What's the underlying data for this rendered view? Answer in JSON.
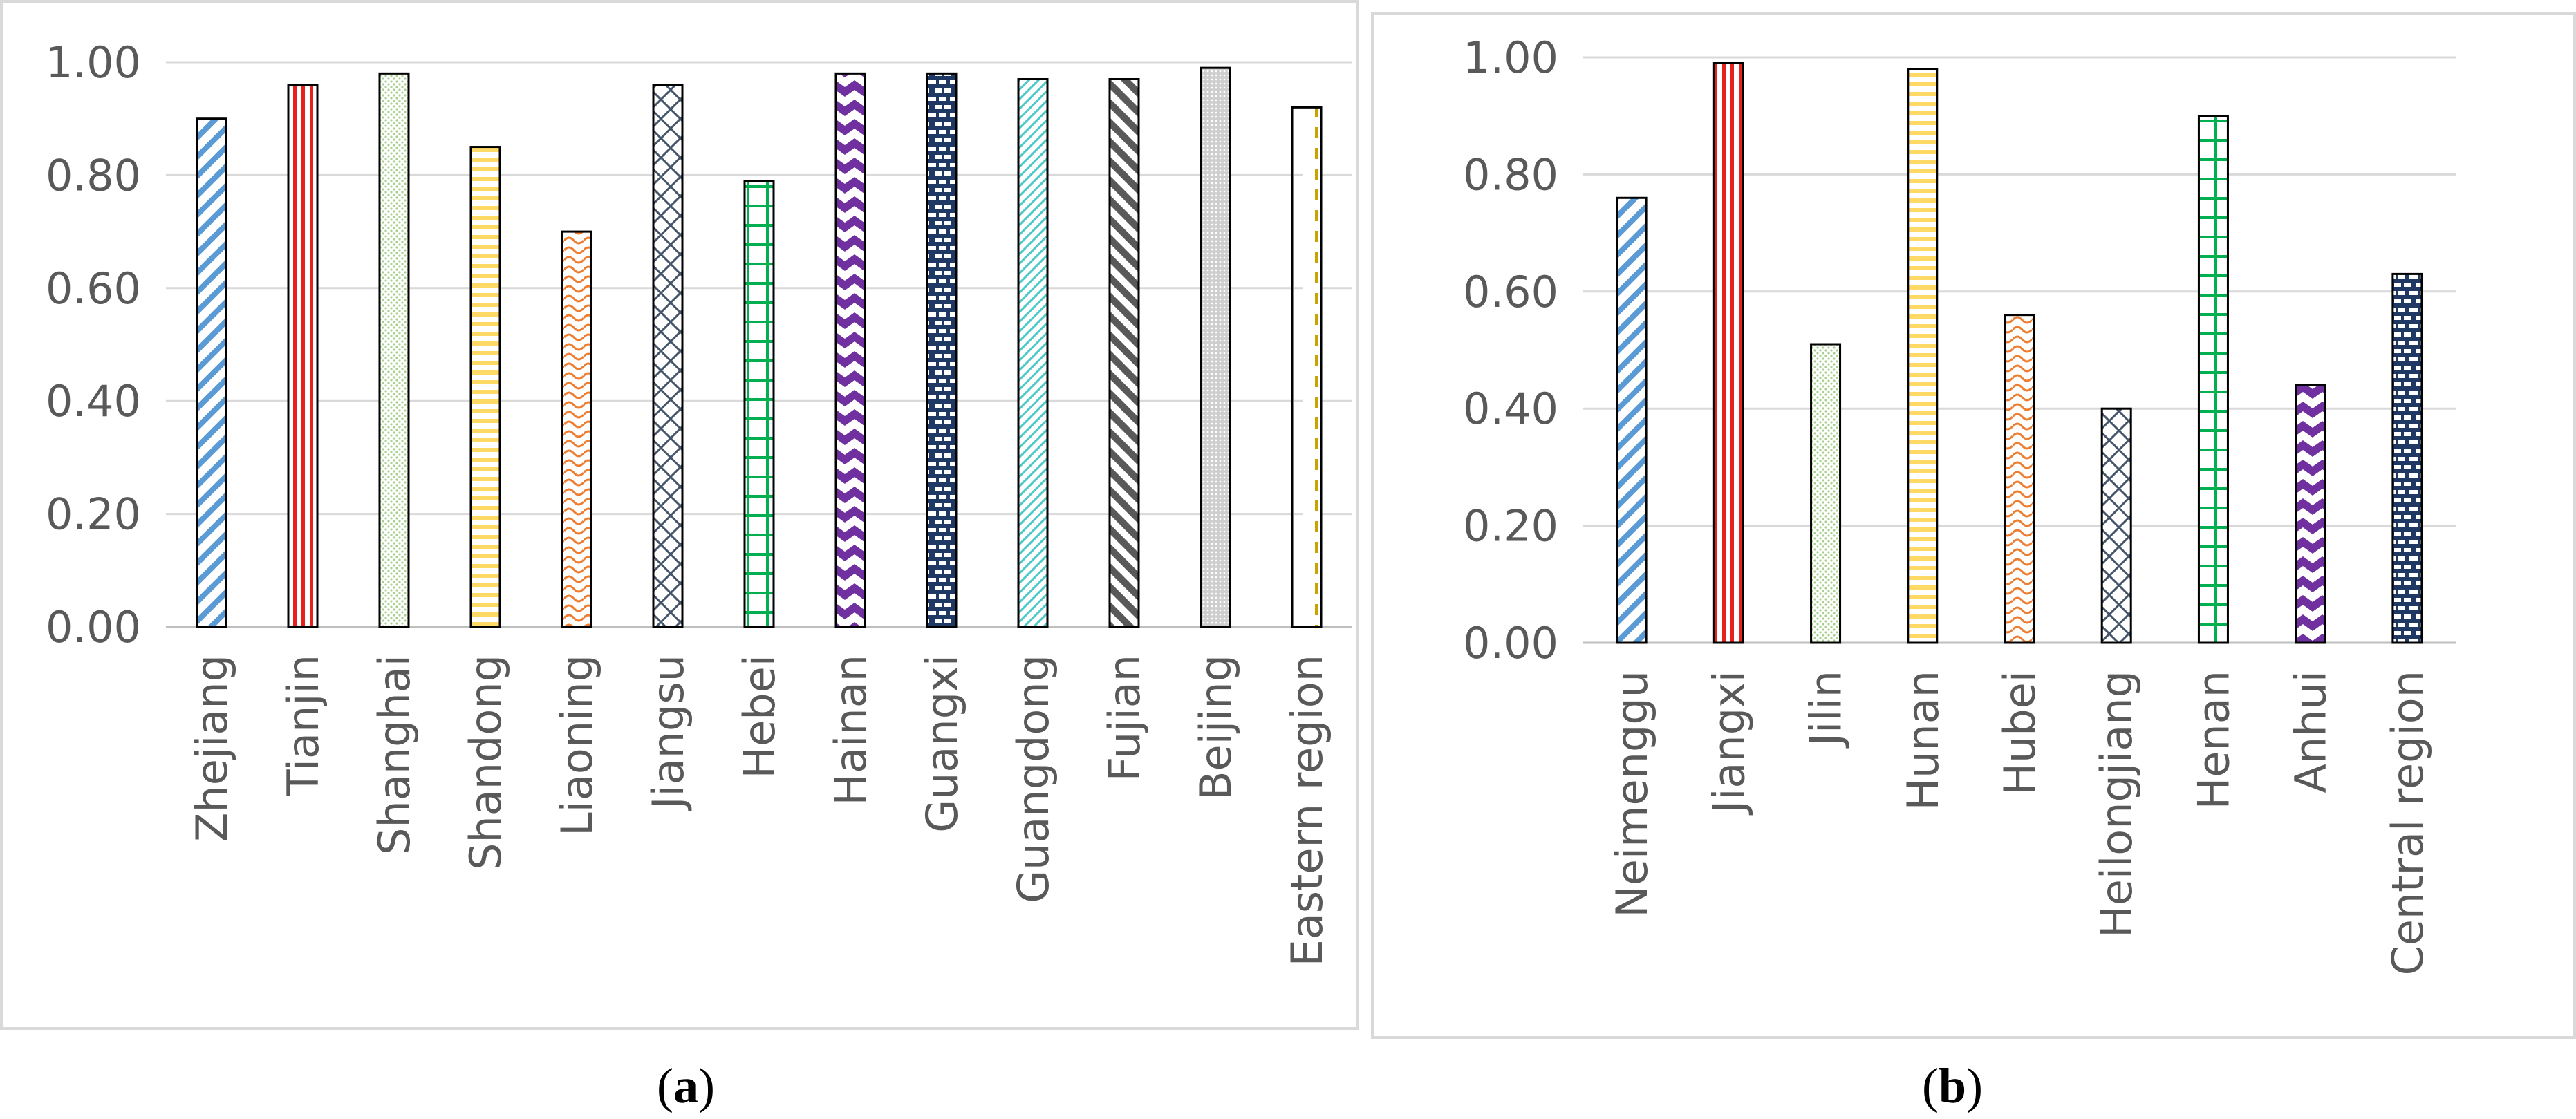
{
  "chart_data": [
    {
      "type": "bar",
      "panel_label": "a",
      "title": "",
      "xlabel": "",
      "ylabel": "",
      "ylim": [
        0,
        1.0
      ],
      "yticks": [
        "0.00",
        "0.20",
        "0.40",
        "0.60",
        "0.80",
        "1.00"
      ],
      "grid": true,
      "categories": [
        "Zhejiang",
        "Tianjin",
        "Shanghai",
        "Shandong",
        "Liaoning",
        "Jiangsu",
        "Hebei",
        "Hainan",
        "Guangxi",
        "Guangdong",
        "Fujian",
        "Beijing",
        "Eastern region"
      ],
      "values": [
        0.9,
        0.96,
        0.98,
        0.85,
        0.7,
        0.96,
        0.79,
        0.98,
        0.98,
        0.97,
        0.97,
        0.99,
        0.92
      ],
      "colors": [
        "#5b9bd5",
        "#e8211c",
        "#a9d18e",
        "#ffd966",
        "#ed7d31",
        "#44546a",
        "#00b050",
        "#7030a0",
        "#1f3864",
        "#4bc8c8",
        "#595959",
        "#a6a6a6",
        "#c9a400"
      ],
      "patterns": [
        "diag",
        "vert",
        "dots",
        "horiz",
        "wave",
        "weave",
        "grid",
        "zigzag",
        "brick",
        "fdiag",
        "wdiag",
        "dense",
        "dash"
      ]
    },
    {
      "type": "bar",
      "panel_label": "b",
      "title": "",
      "xlabel": "",
      "ylabel": "",
      "ylim": [
        0,
        1.0
      ],
      "yticks": [
        "0.00",
        "0.20",
        "0.40",
        "0.60",
        "0.80",
        "1.00"
      ],
      "grid": true,
      "categories": [
        "Neimenggu",
        "Jiangxi",
        "Jilin",
        "Hunan",
        "Hubei",
        "Heilongjiang",
        "Henan",
        "Anhui",
        "Central region"
      ],
      "values": [
        0.76,
        0.99,
        0.51,
        0.98,
        0.56,
        0.4,
        0.9,
        0.44,
        0.63
      ],
      "colors": [
        "#5b9bd5",
        "#e8211c",
        "#a9d18e",
        "#ffd966",
        "#ed7d31",
        "#44546a",
        "#00b050",
        "#7030a0",
        "#1f3864"
      ],
      "patterns": [
        "diag",
        "vert",
        "dots",
        "horiz",
        "wave",
        "weave",
        "grid",
        "zigzag",
        "brick"
      ]
    }
  ],
  "captions": {
    "a": "a",
    "b": "b"
  }
}
